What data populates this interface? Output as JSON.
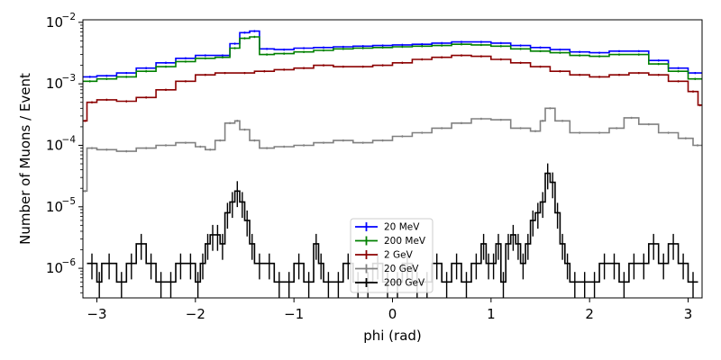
{
  "chart_data": {
    "type": "line",
    "style": "step-histogram",
    "title": "",
    "xlabel": "phi (rad)",
    "ylabel": "Number of Muons / Event",
    "xlim": [
      -3.1416,
      3.1416
    ],
    "ylim": [
      3.3e-07,
      0.011
    ],
    "yscale": "log",
    "grid": false,
    "legend_position": "bottom-center",
    "x_ticks": [
      -3,
      -2,
      -1,
      0,
      1,
      2,
      3
    ],
    "x_tick_labels": [
      "−3",
      "−2",
      "−1",
      "0",
      "1",
      "2",
      "3"
    ],
    "y_ticks": [
      1e-06,
      1e-05,
      0.0001,
      0.001,
      0.01
    ],
    "y_tick_labels": [
      {
        "base": "10",
        "exp": "−6"
      },
      {
        "base": "10",
        "exp": "−5"
      },
      {
        "base": "10",
        "exp": "−4"
      },
      {
        "base": "10",
        "exp": "−3"
      },
      {
        "base": "10",
        "exp": "−2"
      }
    ],
    "series": [
      {
        "name": "20 MeV",
        "color": "#0000ff",
        "x": [
          -3.1416,
          -3.0,
          -2.8,
          -2.6,
          -2.4,
          -2.2,
          -2.0,
          -1.8,
          -1.65,
          -1.55,
          -1.45,
          -1.35,
          -1.2,
          -1.0,
          -0.8,
          -0.6,
          -0.4,
          -0.2,
          0.0,
          0.2,
          0.4,
          0.6,
          0.8,
          1.0,
          1.2,
          1.4,
          1.6,
          1.8,
          2.0,
          2.2,
          2.4,
          2.6,
          2.8,
          3.0,
          3.1416
        ],
        "values": [
          0.0013,
          0.00135,
          0.0015,
          0.0018,
          0.0022,
          0.0026,
          0.0029,
          0.0029,
          0.0045,
          0.0068,
          0.0072,
          0.0037,
          0.0036,
          0.0038,
          0.0039,
          0.004,
          0.0041,
          0.0042,
          0.0043,
          0.0044,
          0.0046,
          0.0048,
          0.0048,
          0.0046,
          0.0042,
          0.0039,
          0.0036,
          0.0033,
          0.0032,
          0.0034,
          0.0034,
          0.0024,
          0.0018,
          0.0015,
          0.0014
        ]
      },
      {
        "name": "200 MeV",
        "color": "#008000",
        "x": [
          -3.1416,
          -3.0,
          -2.8,
          -2.6,
          -2.4,
          -2.2,
          -2.0,
          -1.8,
          -1.65,
          -1.55,
          -1.45,
          -1.35,
          -1.2,
          -1.0,
          -0.8,
          -0.6,
          -0.4,
          -0.2,
          0.0,
          0.2,
          0.4,
          0.6,
          0.8,
          1.0,
          1.2,
          1.4,
          1.6,
          1.8,
          2.0,
          2.2,
          2.4,
          2.6,
          2.8,
          3.0,
          3.1416
        ],
        "values": [
          0.0011,
          0.0012,
          0.0013,
          0.0016,
          0.0019,
          0.0023,
          0.0026,
          0.0027,
          0.0038,
          0.0055,
          0.0058,
          0.003,
          0.0031,
          0.0033,
          0.0035,
          0.0037,
          0.0038,
          0.0039,
          0.004,
          0.0041,
          0.0042,
          0.0044,
          0.0043,
          0.0041,
          0.0037,
          0.0034,
          0.0032,
          0.0029,
          0.0028,
          0.003,
          0.003,
          0.0021,
          0.0016,
          0.0012,
          0.0011
        ]
      },
      {
        "name": "2 GeV",
        "color": "#8b0000",
        "x": [
          -3.1416,
          -3.1,
          -3.0,
          -2.8,
          -2.6,
          -2.4,
          -2.2,
          -2.0,
          -1.8,
          -1.6,
          -1.4,
          -1.2,
          -1.0,
          -0.8,
          -0.6,
          -0.4,
          -0.2,
          0.0,
          0.2,
          0.4,
          0.6,
          0.8,
          1.0,
          1.2,
          1.4,
          1.6,
          1.8,
          2.0,
          2.2,
          2.4,
          2.6,
          2.8,
          3.0,
          3.1,
          3.1416
        ],
        "values": [
          0.00025,
          0.0005,
          0.00055,
          0.00052,
          0.0006,
          0.0008,
          0.0011,
          0.0014,
          0.0015,
          0.0015,
          0.0016,
          0.0017,
          0.0018,
          0.002,
          0.0019,
          0.0019,
          0.002,
          0.0022,
          0.0025,
          0.0027,
          0.0029,
          0.0028,
          0.0025,
          0.0022,
          0.0019,
          0.0016,
          0.0014,
          0.0013,
          0.0014,
          0.0015,
          0.0014,
          0.0011,
          0.00075,
          0.00045,
          0.0002
        ]
      },
      {
        "name": "20 GeV",
        "color": "#808080",
        "x": [
          -3.1416,
          -3.1,
          -3.0,
          -2.8,
          -2.6,
          -2.4,
          -2.2,
          -2.0,
          -1.9,
          -1.8,
          -1.7,
          -1.6,
          -1.55,
          -1.45,
          -1.35,
          -1.2,
          -1.0,
          -0.8,
          -0.6,
          -0.4,
          -0.2,
          0.0,
          0.2,
          0.4,
          0.6,
          0.8,
          1.0,
          1.2,
          1.4,
          1.5,
          1.55,
          1.65,
          1.8,
          2.0,
          2.2,
          2.35,
          2.5,
          2.7,
          2.9,
          3.05,
          3.1416
        ],
        "values": [
          1.8e-05,
          9e-05,
          8.5e-05,
          8e-05,
          9e-05,
          0.0001,
          0.00011,
          9.5e-05,
          8.5e-05,
          0.00012,
          0.00023,
          0.00025,
          0.00018,
          0.00012,
          9e-05,
          9.5e-05,
          0.0001,
          0.00011,
          0.00012,
          0.00011,
          0.00012,
          0.00014,
          0.00016,
          0.00019,
          0.00023,
          0.00027,
          0.00026,
          0.00019,
          0.00017,
          0.00025,
          0.0004,
          0.00025,
          0.00016,
          0.00016,
          0.00019,
          0.00028,
          0.00022,
          0.00016,
          0.00013,
          0.0001,
          3e-05
        ]
      },
      {
        "name": "200 GeV",
        "color": "#000000",
        "x": [
          -3.1,
          -3.0,
          -2.95,
          -2.8,
          -2.7,
          -2.6,
          -2.5,
          -2.4,
          -2.3,
          -2.2,
          -2.1,
          -2.0,
          -1.95,
          -1.9,
          -1.85,
          -1.8,
          -1.75,
          -1.7,
          -1.65,
          -1.6,
          -1.55,
          -1.5,
          -1.45,
          -1.4,
          -1.3,
          -1.2,
          -1.1,
          -1.0,
          -0.9,
          -0.8,
          -0.75,
          -0.7,
          -0.6,
          -0.5,
          -0.4,
          -0.3,
          -0.2,
          -0.1,
          0.0,
          0.1,
          0.2,
          0.3,
          0.4,
          0.5,
          0.6,
          0.7,
          0.8,
          0.9,
          0.95,
          1.0,
          1.05,
          1.1,
          1.15,
          1.2,
          1.25,
          1.3,
          1.35,
          1.4,
          1.45,
          1.5,
          1.55,
          1.6,
          1.65,
          1.7,
          1.75,
          1.8,
          1.9,
          2.0,
          2.1,
          2.2,
          2.3,
          2.4,
          2.5,
          2.6,
          2.7,
          2.8,
          2.9,
          3.0,
          3.1
        ],
        "values": [
          1.2e-06,
          6e-07,
          1.2e-06,
          6e-07,
          1.2e-06,
          2.5e-06,
          1.2e-06,
          6e-07,
          6e-07,
          1.2e-06,
          1.2e-06,
          6e-07,
          1.2e-06,
          2.5e-06,
          3.5e-06,
          3.5e-06,
          2.5e-06,
          8e-06,
          1.2e-05,
          1.8e-05,
          1.2e-05,
          6e-06,
          2.5e-06,
          1.2e-06,
          1.2e-06,
          6e-07,
          6e-07,
          1.2e-06,
          6e-07,
          2.5e-06,
          1.2e-06,
          6e-07,
          6e-07,
          1.2e-06,
          6e-07,
          6e-07,
          1.2e-06,
          6e-07,
          6e-07,
          1.2e-06,
          6e-07,
          6e-07,
          1.2e-06,
          6e-07,
          1.2e-06,
          6e-07,
          1.2e-06,
          2.5e-06,
          1.2e-06,
          1.2e-06,
          2.5e-06,
          6e-07,
          2.5e-06,
          3.5e-06,
          2.5e-06,
          1.2e-06,
          2.5e-06,
          6e-06,
          8e-06,
          1.2e-05,
          3.5e-05,
          2.5e-05,
          8e-06,
          2.5e-06,
          1.2e-06,
          6e-07,
          6e-07,
          6e-07,
          1.2e-06,
          1.2e-06,
          6e-07,
          1.2e-06,
          1.2e-06,
          2.5e-06,
          1.2e-06,
          2.5e-06,
          1.2e-06,
          6e-07,
          1.2e-06
        ]
      }
    ]
  }
}
